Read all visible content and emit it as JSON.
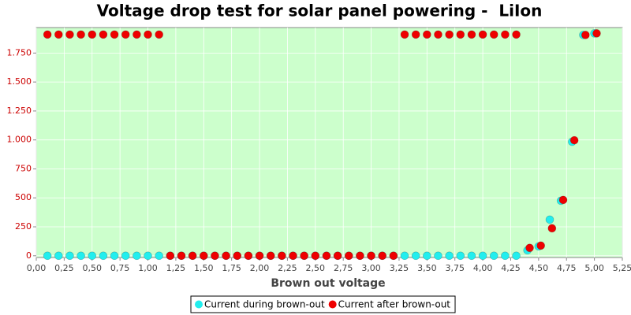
{
  "chart_data": {
    "type": "scatter",
    "title": "Voltage drop test for solar panel powering -  LiIon",
    "x_label": "Brown out voltage",
    "xlim": [
      0,
      5.25
    ],
    "ylim": [
      -15,
      1970
    ],
    "xticks": [
      {
        "value": 0,
        "label": "0,00"
      },
      {
        "value": 0.25,
        "label": "0,25"
      },
      {
        "value": 0.5,
        "label": "0,50"
      },
      {
        "value": 0.75,
        "label": "0,75"
      },
      {
        "value": 1,
        "label": "1,00"
      },
      {
        "value": 1.25,
        "label": "1,25"
      },
      {
        "value": 1.5,
        "label": "1,50"
      },
      {
        "value": 1.75,
        "label": "1,75"
      },
      {
        "value": 2,
        "label": "2,00"
      },
      {
        "value": 2.25,
        "label": "2,25"
      },
      {
        "value": 2.5,
        "label": "2,50"
      },
      {
        "value": 2.75,
        "label": "2,75"
      },
      {
        "value": 3,
        "label": "3,00"
      },
      {
        "value": 3.25,
        "label": "3,25"
      },
      {
        "value": 3.5,
        "label": "3,50"
      },
      {
        "value": 3.75,
        "label": "3,75"
      },
      {
        "value": 4,
        "label": "4,00"
      },
      {
        "value": 4.25,
        "label": "4,25"
      },
      {
        "value": 4.5,
        "label": "4,50"
      },
      {
        "value": 4.75,
        "label": "4,75"
      },
      {
        "value": 5,
        "label": "5,00"
      },
      {
        "value": 5.25,
        "label": "5,25"
      }
    ],
    "yticks": [
      0,
      250,
      500,
      750,
      {
        "value": 1000,
        "label": "1.000"
      },
      {
        "value": 1250,
        "label": "1.250"
      },
      {
        "value": 1500,
        "label": "1.500"
      },
      {
        "value": 1750,
        "label": "1.750"
      }
    ],
    "grid": true,
    "legend": "bottom",
    "series": [
      {
        "name": "Current during brown-out",
        "color": "#22eeee",
        "x": [
          0.1,
          0.2,
          0.3,
          0.4,
          0.5,
          0.6,
          0.7,
          0.8,
          0.9,
          1.0,
          1.1,
          1.2,
          1.3,
          1.4,
          1.5,
          1.6,
          1.7,
          1.8,
          1.9,
          2.0,
          2.1,
          2.2,
          2.3,
          2.4,
          2.5,
          2.6,
          2.7,
          2.8,
          2.9,
          3.0,
          3.1,
          3.2,
          3.3,
          3.4,
          3.5,
          3.6,
          3.7,
          3.8,
          3.9,
          4.0,
          4.1,
          4.2,
          4.3,
          4.4,
          4.5,
          4.6,
          4.7,
          4.8,
          4.9,
          5.0
        ],
        "values": [
          0,
          0,
          0,
          0,
          0,
          0,
          0,
          0,
          0,
          0,
          0,
          0,
          0,
          0,
          0,
          0,
          0,
          0,
          0,
          0,
          0,
          0,
          0,
          0,
          0,
          0,
          0,
          0,
          0,
          0,
          0,
          0,
          0,
          0,
          0,
          0,
          0,
          0,
          0,
          0,
          0,
          0,
          0,
          47,
          81,
          312,
          475,
          984,
          1906,
          1920
        ]
      },
      {
        "name": "Current after brown-out",
        "color": "#ee0000",
        "x": [
          0.1,
          0.2,
          0.3,
          0.4,
          0.5,
          0.6,
          0.7,
          0.8,
          0.9,
          1.0,
          1.1,
          1.2,
          1.3,
          1.4,
          1.5,
          1.6,
          1.7,
          1.8,
          1.9,
          2.0,
          2.1,
          2.2,
          2.3,
          2.4,
          2.5,
          2.6,
          2.7,
          2.8,
          2.9,
          3.0,
          3.1,
          3.2,
          3.3,
          3.4,
          3.5,
          3.6,
          3.7,
          3.8,
          3.9,
          4.0,
          4.1,
          4.2,
          4.3,
          4.42,
          4.52,
          4.62,
          4.72,
          4.82,
          4.92,
          5.02
        ],
        "values": [
          1910,
          1910,
          1910,
          1910,
          1910,
          1910,
          1910,
          1910,
          1910,
          1910,
          1910,
          0,
          0,
          0,
          0,
          0,
          0,
          0,
          0,
          0,
          0,
          0,
          0,
          0,
          0,
          0,
          0,
          0,
          0,
          0,
          0,
          0,
          1910,
          1910,
          1910,
          1910,
          1910,
          1910,
          1910,
          1910,
          1910,
          1910,
          1910,
          68,
          88,
          237,
          482,
          997,
          1906,
          1920
        ]
      }
    ]
  }
}
